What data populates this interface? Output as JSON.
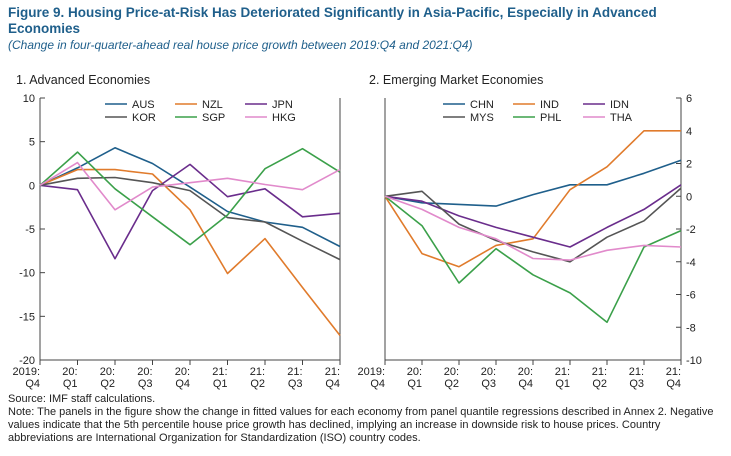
{
  "title": "Figure 9. Housing Price-at-Risk Has Deteriorated Significantly in Asia-Pacific, Especially in Advanced Economies",
  "subtitle": "(Change in four-quarter-ahead real house price growth between 2019:Q4 and 2021:Q4)",
  "source": "Source: IMF staff calculations.",
  "note": "Note: The panels in the figure show the change in fitted values for each economy from panel quantile regressions described in Annex 2. Negative values indicate that the 5th percentile house price growth has declined, implying an increase in downside risk to house prices. Country abbreviations are International Organization for Standardization (ISO) country codes.",
  "chart_data": [
    {
      "type": "line",
      "title": "1. Advanced Economies",
      "categories": [
        [
          "2019:",
          "Q4"
        ],
        [
          "20:",
          "Q1"
        ],
        [
          "20:",
          "Q2"
        ],
        [
          "20:",
          "Q3"
        ],
        [
          "20:",
          "Q4"
        ],
        [
          "21:",
          "Q1"
        ],
        [
          "21:",
          "Q2"
        ],
        [
          "21:",
          "Q3"
        ],
        [
          "21:",
          "Q4"
        ]
      ],
      "ylim": [
        -20,
        10
      ],
      "yticks": [
        -20,
        -15,
        -10,
        -5,
        0,
        5,
        10
      ],
      "y_axis_side": "left",
      "grid": false,
      "legend_position": "top",
      "series": [
        {
          "name": "AUS",
          "color": "#1f5f8b",
          "values": [
            0,
            2.0,
            4.3,
            2.5,
            -0.2,
            -3.0,
            -4.2,
            -4.8,
            -7.0
          ]
        },
        {
          "name": "NZL",
          "color": "#e07b2c",
          "values": [
            0,
            1.8,
            1.8,
            1.3,
            -2.8,
            -10.1,
            -6.1,
            -11.7,
            -17.2
          ]
        },
        {
          "name": "JPN",
          "color": "#6a2d8c",
          "values": [
            0,
            -0.5,
            -8.4,
            -0.6,
            2.4,
            -1.3,
            -0.4,
            -3.6,
            -3.2
          ]
        },
        {
          "name": "KOR",
          "color": "#555555",
          "values": [
            0,
            0.8,
            0.9,
            0.3,
            -0.6,
            -3.7,
            -4.2,
            -6.4,
            -8.5
          ]
        },
        {
          "name": "SGP",
          "color": "#3ba04a",
          "values": [
            0,
            3.8,
            -0.4,
            -3.6,
            -6.8,
            -3.4,
            1.9,
            4.2,
            1.5
          ]
        },
        {
          "name": "HKG",
          "color": "#e18acb",
          "values": [
            0,
            2.6,
            -2.8,
            -0.2,
            0.3,
            0.8,
            0.1,
            -0.5,
            1.8
          ]
        }
      ]
    },
    {
      "type": "line",
      "title": "2. Emerging Market Economies",
      "categories": [
        [
          "2019:",
          "Q4"
        ],
        [
          "20:",
          "Q1"
        ],
        [
          "20:",
          "Q2"
        ],
        [
          "20:",
          "Q3"
        ],
        [
          "20:",
          "Q4"
        ],
        [
          "21:",
          "Q1"
        ],
        [
          "21:",
          "Q2"
        ],
        [
          "21:",
          "Q3"
        ],
        [
          "21:",
          "Q4"
        ]
      ],
      "ylim": [
        -10,
        6
      ],
      "yticks": [
        -10,
        -8,
        -6,
        -4,
        -2,
        0,
        2,
        4,
        6
      ],
      "y_axis_side": "right",
      "grid": false,
      "legend_position": "top",
      "series": [
        {
          "name": "CHN",
          "color": "#1f5f8b",
          "values": [
            0,
            -0.4,
            -0.5,
            -0.6,
            0.1,
            0.7,
            0.7,
            1.4,
            2.2
          ]
        },
        {
          "name": "IND",
          "color": "#e07b2c",
          "values": [
            0,
            -3.5,
            -4.3,
            -3.0,
            -2.6,
            0.4,
            1.8,
            4.0,
            4.0
          ]
        },
        {
          "name": "IDN",
          "color": "#6a2d8c",
          "values": [
            0,
            -0.3,
            -1.2,
            -1.9,
            -2.5,
            -3.1,
            -1.9,
            -0.8,
            0.7
          ]
        },
        {
          "name": "MYS",
          "color": "#555555",
          "values": [
            0,
            0.3,
            -1.7,
            -2.7,
            -3.4,
            -4.0,
            -2.5,
            -1.5,
            0.5
          ]
        },
        {
          "name": "PHL",
          "color": "#3ba04a",
          "values": [
            0,
            -1.8,
            -5.3,
            -3.2,
            -4.8,
            -5.9,
            -7.7,
            -3.1,
            -2.1
          ]
        },
        {
          "name": "THA",
          "color": "#e18acb",
          "values": [
            0,
            -0.8,
            -1.9,
            -2.6,
            -3.8,
            -3.9,
            -3.3,
            -3.0,
            -3.1
          ]
        }
      ]
    }
  ]
}
